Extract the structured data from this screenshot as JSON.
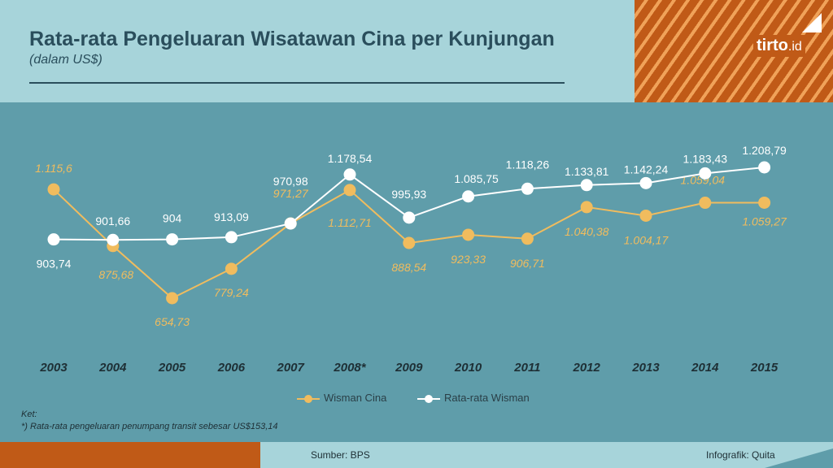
{
  "header": {
    "title": "Rata-rata Pengeluaran Wisatawan Cina per Kunjungan",
    "subtitle": "(dalam US$)",
    "logo_main": "tirto",
    "logo_suffix": ".id"
  },
  "chart_data": {
    "type": "line",
    "categories": [
      "2003",
      "2004",
      "2005",
      "2006",
      "2007",
      "2008*",
      "2009",
      "2010",
      "2011",
      "2012",
      "2013",
      "2014",
      "2015"
    ],
    "series": [
      {
        "name": "Wisman Cina",
        "color": "#f0bc5e",
        "values": [
          1115.6,
          875.68,
          654.73,
          779.24,
          971.27,
          1112.71,
          888.54,
          923.33,
          906.71,
          1040.38,
          1004.17,
          1059.04,
          1059.27
        ],
        "labels": [
          "1.115,6",
          "875,68",
          "654,73",
          "779,24",
          "971,27",
          "1.112,71",
          "888,54",
          "923,33",
          "906,71",
          "1.040,38",
          "1.004,17",
          "1.059,04",
          "1.059,27"
        ]
      },
      {
        "name": "Rata-rata Wisman",
        "color": "#ffffff",
        "values": [
          903.74,
          901.66,
          904,
          913.09,
          970.98,
          1178.54,
          995.93,
          1085.75,
          1118.26,
          1133.81,
          1142.24,
          1183.43,
          1208.79
        ],
        "labels": [
          "903,74",
          "901,66",
          "904",
          "913,09",
          "970,98",
          "1.178,54",
          "995,93",
          "1.085,75",
          "1.118,26",
          "1.133,81",
          "1.142,24",
          "1.183,43",
          "1.208,79"
        ]
      }
    ],
    "grid": false,
    "legend": "bottom-center"
  },
  "notes": {
    "label": "Ket:",
    "text": "*) Rata-rata pengeluaran penumpang transit sebesar US$153,14"
  },
  "footer": {
    "source": "Sumber: BPS",
    "credit": "Infografik: Quita"
  }
}
